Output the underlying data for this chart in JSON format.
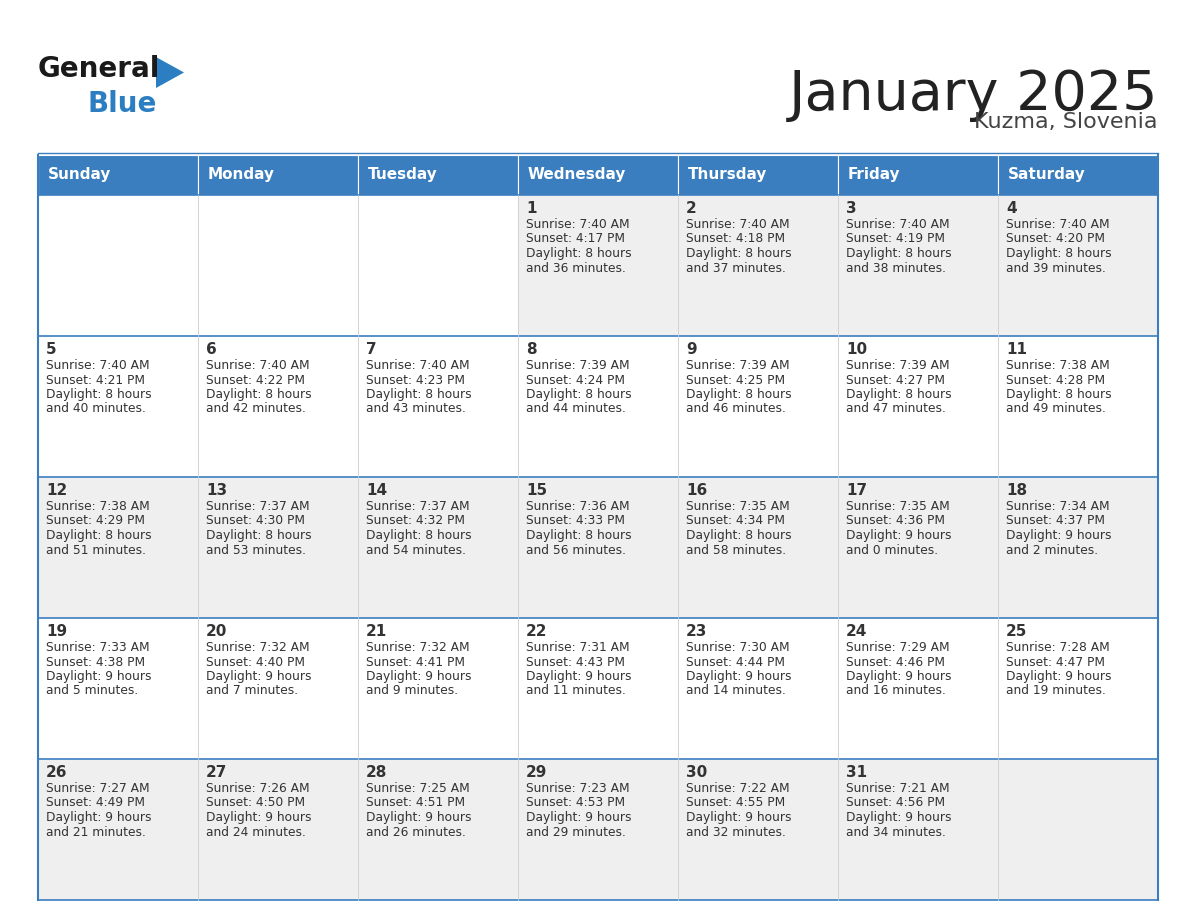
{
  "title": "January 2025",
  "subtitle": "Kuzma, Slovenia",
  "header_bg": "#3A7EBF",
  "header_text_color": "#FFFFFF",
  "row_bg_light": "#EFEFEF",
  "row_bg_white": "#FFFFFF",
  "border_color": "#3A7EBF",
  "cell_border_color": "#CCCCCC",
  "day_names": [
    "Sunday",
    "Monday",
    "Tuesday",
    "Wednesday",
    "Thursday",
    "Friday",
    "Saturday"
  ],
  "title_color": "#222222",
  "subtitle_color": "#444444",
  "cell_text_color": "#333333",
  "day_number_color": "#333333",
  "logo_general_color": "#1a1a1a",
  "logo_blue_color": "#2B7EC1",
  "logo_triangle_color": "#2B7EC1",
  "calendar": [
    [
      null,
      null,
      null,
      {
        "day": 1,
        "sunrise": "7:40 AM",
        "sunset": "4:17 PM",
        "daylight": "8 hours and 36 minutes"
      },
      {
        "day": 2,
        "sunrise": "7:40 AM",
        "sunset": "4:18 PM",
        "daylight": "8 hours and 37 minutes"
      },
      {
        "day": 3,
        "sunrise": "7:40 AM",
        "sunset": "4:19 PM",
        "daylight": "8 hours and 38 minutes"
      },
      {
        "day": 4,
        "sunrise": "7:40 AM",
        "sunset": "4:20 PM",
        "daylight": "8 hours and 39 minutes"
      }
    ],
    [
      {
        "day": 5,
        "sunrise": "7:40 AM",
        "sunset": "4:21 PM",
        "daylight": "8 hours and 40 minutes"
      },
      {
        "day": 6,
        "sunrise": "7:40 AM",
        "sunset": "4:22 PM",
        "daylight": "8 hours and 42 minutes"
      },
      {
        "day": 7,
        "sunrise": "7:40 AM",
        "sunset": "4:23 PM",
        "daylight": "8 hours and 43 minutes"
      },
      {
        "day": 8,
        "sunrise": "7:39 AM",
        "sunset": "4:24 PM",
        "daylight": "8 hours and 44 minutes"
      },
      {
        "day": 9,
        "sunrise": "7:39 AM",
        "sunset": "4:25 PM",
        "daylight": "8 hours and 46 minutes"
      },
      {
        "day": 10,
        "sunrise": "7:39 AM",
        "sunset": "4:27 PM",
        "daylight": "8 hours and 47 minutes"
      },
      {
        "day": 11,
        "sunrise": "7:38 AM",
        "sunset": "4:28 PM",
        "daylight": "8 hours and 49 minutes"
      }
    ],
    [
      {
        "day": 12,
        "sunrise": "7:38 AM",
        "sunset": "4:29 PM",
        "daylight": "8 hours and 51 minutes"
      },
      {
        "day": 13,
        "sunrise": "7:37 AM",
        "sunset": "4:30 PM",
        "daylight": "8 hours and 53 minutes"
      },
      {
        "day": 14,
        "sunrise": "7:37 AM",
        "sunset": "4:32 PM",
        "daylight": "8 hours and 54 minutes"
      },
      {
        "day": 15,
        "sunrise": "7:36 AM",
        "sunset": "4:33 PM",
        "daylight": "8 hours and 56 minutes"
      },
      {
        "day": 16,
        "sunrise": "7:35 AM",
        "sunset": "4:34 PM",
        "daylight": "8 hours and 58 minutes"
      },
      {
        "day": 17,
        "sunrise": "7:35 AM",
        "sunset": "4:36 PM",
        "daylight": "9 hours and 0 minutes"
      },
      {
        "day": 18,
        "sunrise": "7:34 AM",
        "sunset": "4:37 PM",
        "daylight": "9 hours and 2 minutes"
      }
    ],
    [
      {
        "day": 19,
        "sunrise": "7:33 AM",
        "sunset": "4:38 PM",
        "daylight": "9 hours and 5 minutes"
      },
      {
        "day": 20,
        "sunrise": "7:32 AM",
        "sunset": "4:40 PM",
        "daylight": "9 hours and 7 minutes"
      },
      {
        "day": 21,
        "sunrise": "7:32 AM",
        "sunset": "4:41 PM",
        "daylight": "9 hours and 9 minutes"
      },
      {
        "day": 22,
        "sunrise": "7:31 AM",
        "sunset": "4:43 PM",
        "daylight": "9 hours and 11 minutes"
      },
      {
        "day": 23,
        "sunrise": "7:30 AM",
        "sunset": "4:44 PM",
        "daylight": "9 hours and 14 minutes"
      },
      {
        "day": 24,
        "sunrise": "7:29 AM",
        "sunset": "4:46 PM",
        "daylight": "9 hours and 16 minutes"
      },
      {
        "day": 25,
        "sunrise": "7:28 AM",
        "sunset": "4:47 PM",
        "daylight": "9 hours and 19 minutes"
      }
    ],
    [
      {
        "day": 26,
        "sunrise": "7:27 AM",
        "sunset": "4:49 PM",
        "daylight": "9 hours and 21 minutes"
      },
      {
        "day": 27,
        "sunrise": "7:26 AM",
        "sunset": "4:50 PM",
        "daylight": "9 hours and 24 minutes"
      },
      {
        "day": 28,
        "sunrise": "7:25 AM",
        "sunset": "4:51 PM",
        "daylight": "9 hours and 26 minutes"
      },
      {
        "day": 29,
        "sunrise": "7:23 AM",
        "sunset": "4:53 PM",
        "daylight": "9 hours and 29 minutes"
      },
      {
        "day": 30,
        "sunrise": "7:22 AM",
        "sunset": "4:55 PM",
        "daylight": "9 hours and 32 minutes"
      },
      {
        "day": 31,
        "sunrise": "7:21 AM",
        "sunset": "4:56 PM",
        "daylight": "9 hours and 34 minutes"
      },
      null
    ]
  ]
}
